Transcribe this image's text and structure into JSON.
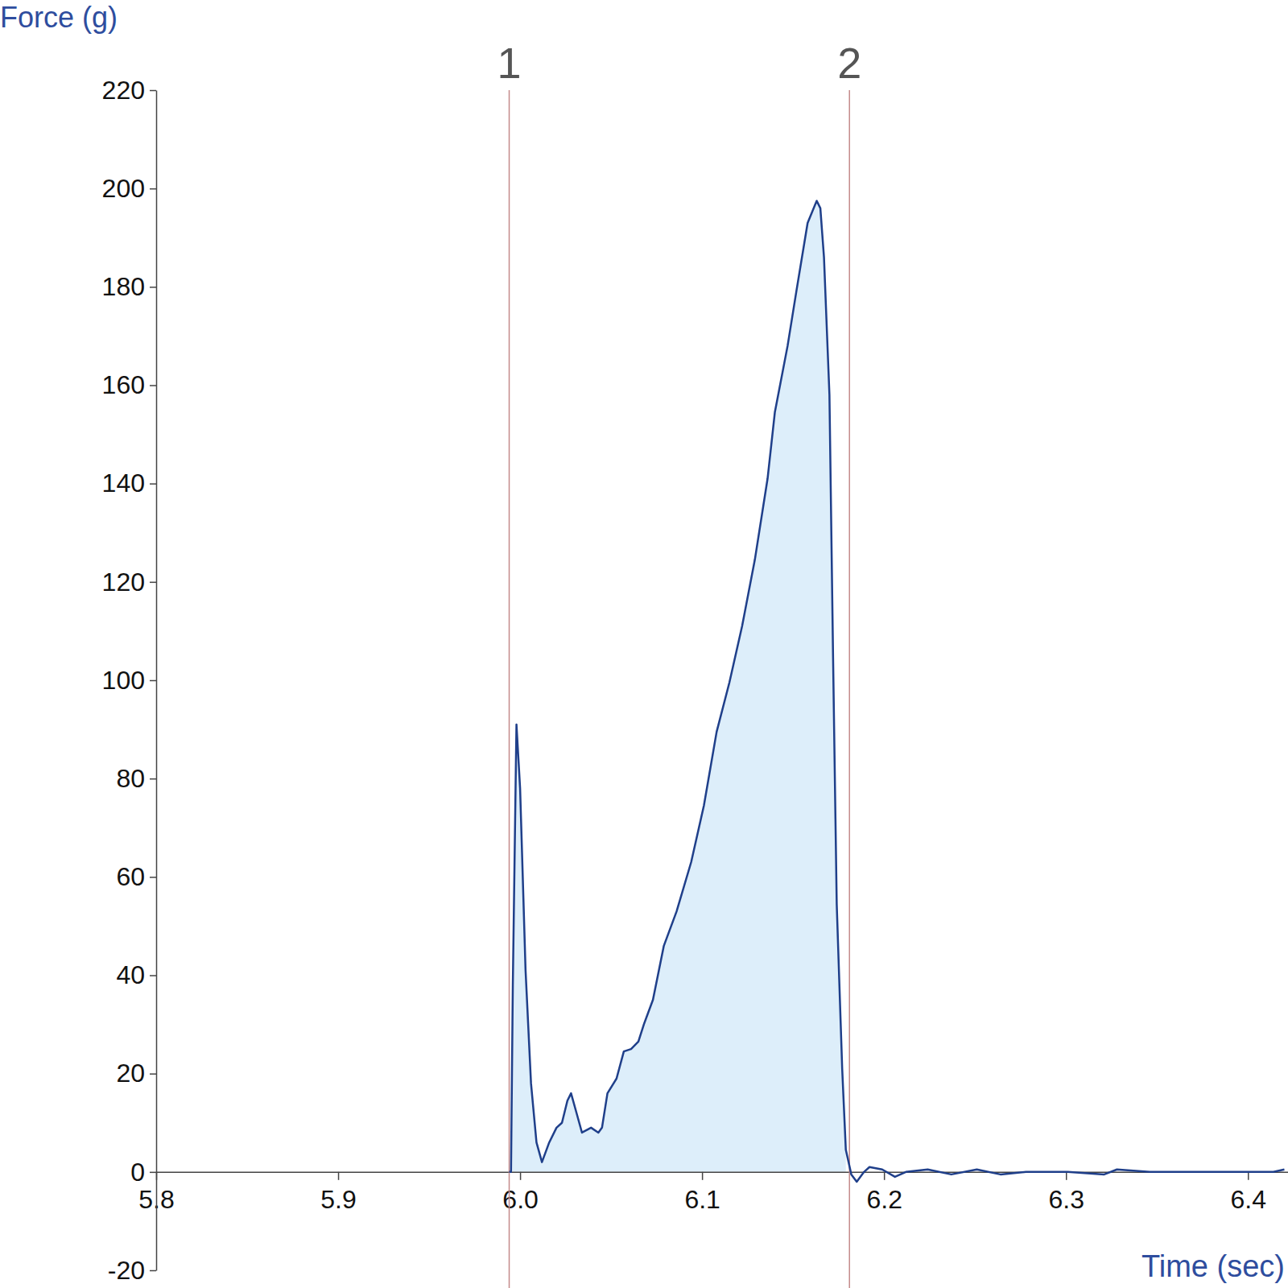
{
  "chart_data": {
    "type": "line",
    "y_label": "Force (g)",
    "x_label": "Time (sec)",
    "color": "#1f3f8a",
    "grid": false,
    "xlim": [
      5.8,
      6.422
    ],
    "xticks": [
      5.8,
      5.9,
      {
        "value": 6,
        "label": "6.0"
      },
      6.1,
      6.2,
      6.3,
      6.4
    ],
    "ylim": [
      -20,
      220
    ],
    "yticks": [
      -20,
      0,
      20,
      40,
      60,
      80,
      100,
      120,
      140,
      160,
      180,
      200,
      220
    ],
    "annotations": [
      {
        "x": 5.994,
        "label": "1"
      },
      {
        "x": 6.181,
        "label": "2"
      }
    ],
    "x": [
      5.994,
      5.995,
      5.996,
      5.998,
      6.0,
      6.003,
      6.006,
      6.009,
      6.012,
      6.016,
      6.02,
      6.023,
      6.026,
      6.028,
      6.031,
      6.034,
      6.039,
      6.043,
      6.045,
      6.048,
      6.053,
      6.057,
      6.061,
      6.065,
      6.068,
      6.073,
      6.079,
      6.086,
      6.094,
      6.101,
      6.108,
      6.115,
      6.122,
      6.129,
      6.136,
      6.14,
      6.147,
      6.152,
      6.158,
      6.163,
      6.165,
      6.167,
      6.17,
      6.172,
      6.174,
      6.177,
      6.179,
      6.182,
      6.185,
      6.189,
      6.192,
      6.199,
      6.206,
      6.212,
      6.224,
      6.237,
      6.251,
      6.264,
      6.278,
      6.301,
      6.321,
      6.328,
      6.346,
      6.368,
      6.391,
      6.414,
      6.42
    ],
    "values": [
      0,
      0,
      38,
      91,
      78,
      41,
      18,
      6,
      2,
      6,
      9,
      10,
      14.5,
      16,
      12,
      8,
      9,
      8,
      9,
      16,
      19,
      24.5,
      25,
      26.5,
      30,
      35,
      46,
      53,
      63,
      74.5,
      89.5,
      99.5,
      111,
      124.5,
      141,
      154.5,
      168,
      179.5,
      193,
      197.5,
      196,
      186,
      158,
      104.5,
      54.5,
      21,
      4.5,
      -0.5,
      -2,
      0,
      1,
      0.5,
      -1,
      0,
      0.5,
      -0.5,
      0.5,
      -0.5,
      0,
      0,
      -0.5,
      0.5,
      0,
      0,
      0,
      0,
      0.5
    ]
  }
}
